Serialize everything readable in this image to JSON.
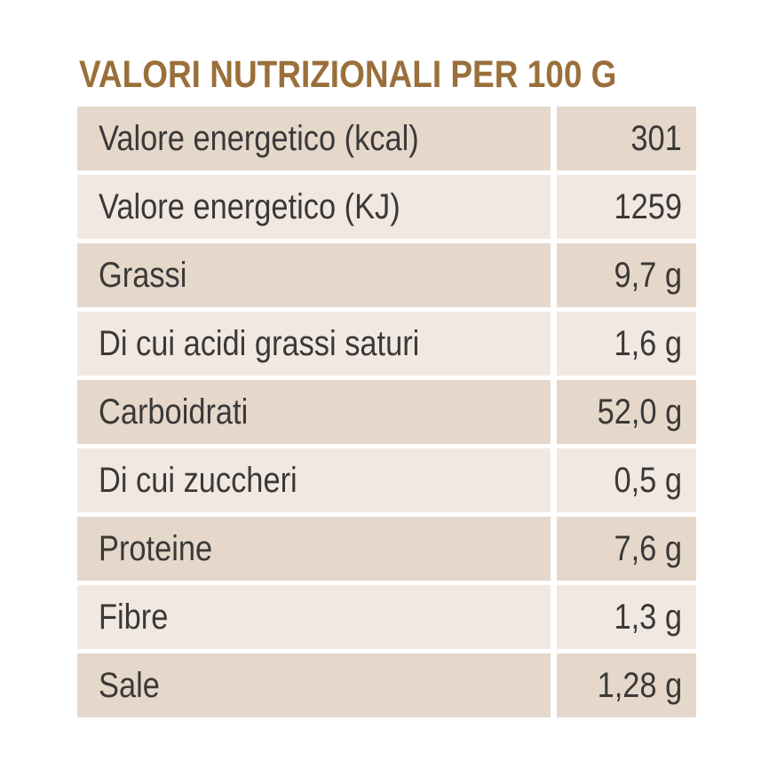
{
  "title": "VALORI NUTRIZIONALI PER 100 G",
  "rows": [
    {
      "label": "Valore energetico (kcal)",
      "value": "301"
    },
    {
      "label": "Valore energetico (KJ)",
      "value": "1259"
    },
    {
      "label": "Grassi",
      "value": "9,7 g"
    },
    {
      "label": "Di cui acidi grassi saturi",
      "value": "1,6 g"
    },
    {
      "label": "Carboidrati",
      "value": "52,0 g"
    },
    {
      "label": "Di cui zuccheri",
      "value": "0,5 g"
    },
    {
      "label": "Proteine",
      "value": "7,6 g"
    },
    {
      "label": "Fibre",
      "value": "1,3 g"
    },
    {
      "label": "Sale",
      "value": "1,28 g"
    }
  ],
  "colors": {
    "title": "#9a6f3a",
    "row_dark": "#e5d8ca",
    "row_light": "#f1e9e1",
    "text": "#3b3838"
  }
}
